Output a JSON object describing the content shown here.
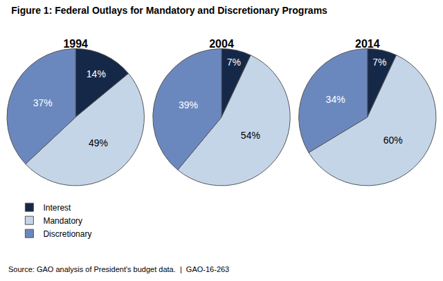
{
  "chart_data": {
    "type": "pie",
    "title": "Figure 1: Federal Outlays for Mandatory and Discretionary Programs",
    "categories": [
      "Interest",
      "Mandatory",
      "Discretionary"
    ],
    "colors": [
      "#162847",
      "#c5d5e8",
      "#6b88be"
    ],
    "series": [
      {
        "name": "1994",
        "values": [
          14,
          49,
          37
        ],
        "value_labels": [
          "14%",
          "49%",
          "37%"
        ]
      },
      {
        "name": "2004",
        "values": [
          7,
          54,
          39
        ],
        "value_labels": [
          "7%",
          "54%",
          "39%"
        ]
      },
      {
        "name": "2014",
        "values": [
          7,
          60,
          34
        ],
        "value_labels": [
          "7%",
          "60%",
          "34%"
        ]
      }
    ],
    "data_labels": true,
    "legend": "bottom left",
    "annotations": [
      "Source: GAO analysis of President's budget data.  |  GAO-16-263"
    ]
  }
}
